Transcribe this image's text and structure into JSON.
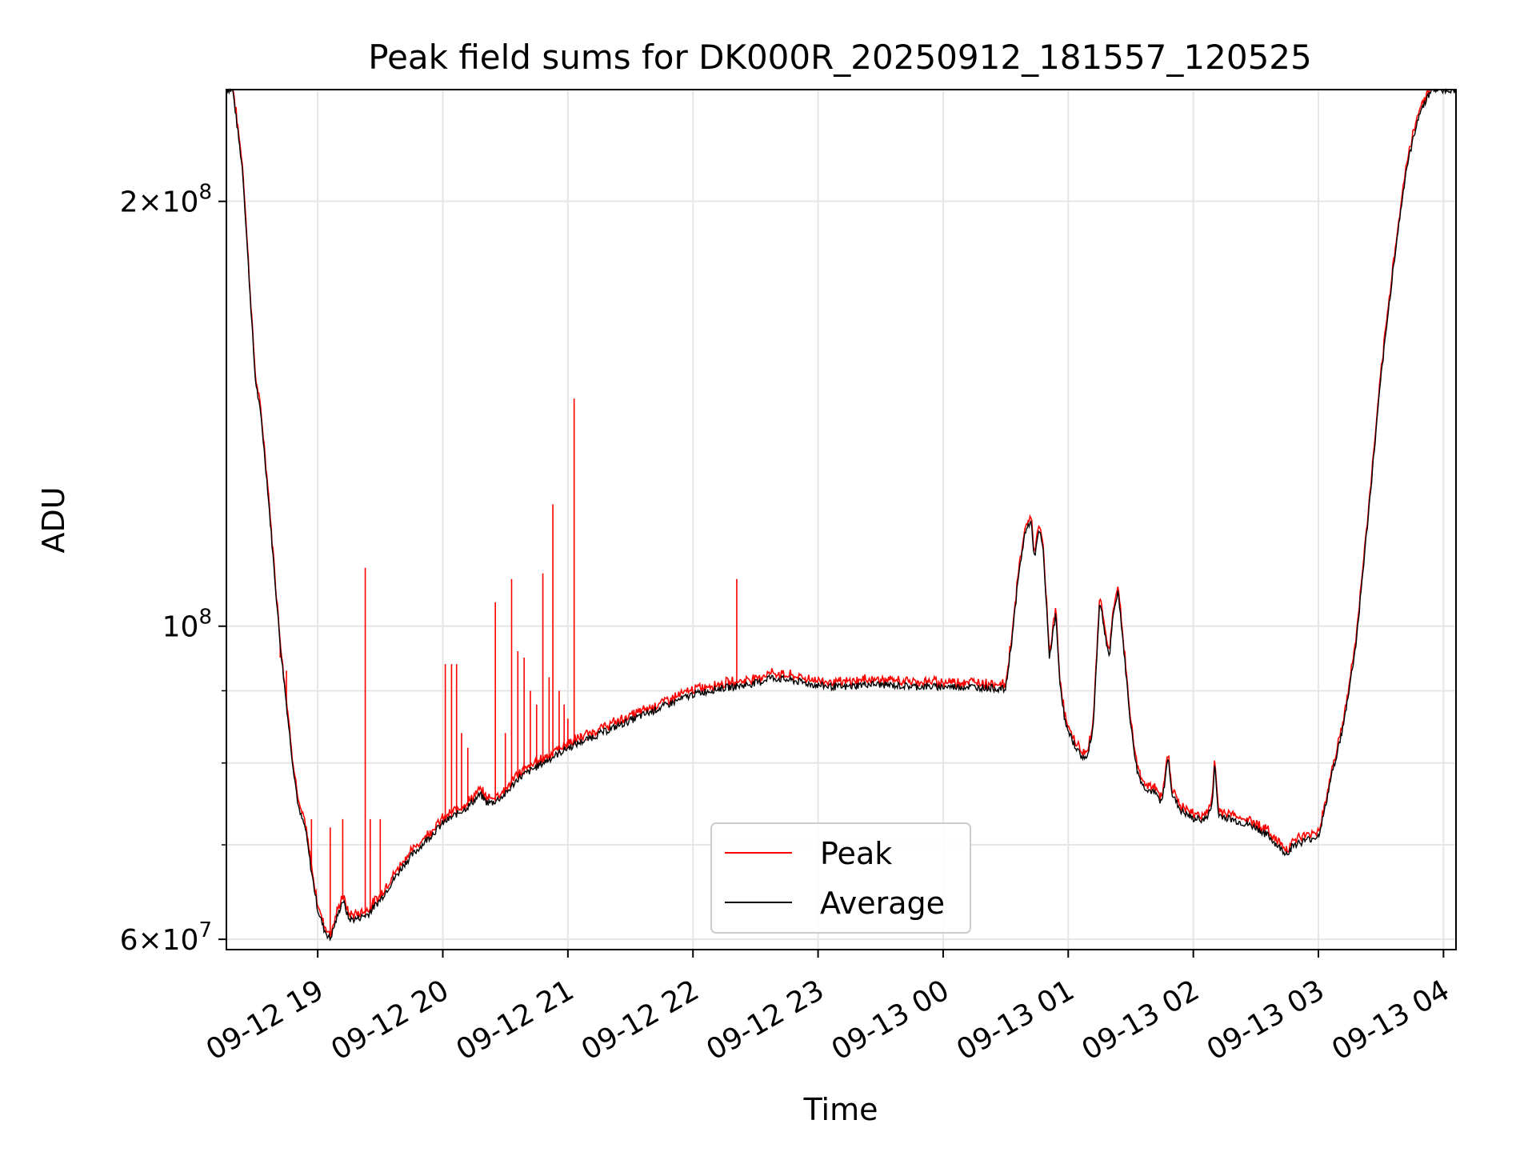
{
  "chart_data": {
    "type": "line",
    "title": "Peak field sums for DK000R_20250912_181557_120525",
    "xlabel": "Time",
    "ylabel": "ADU",
    "yscale": "log",
    "x_unit": "hours since 2025-09-12 18:00",
    "xlim": [
      18.27,
      28.1
    ],
    "ylim": [
      59000000,
      240000000
    ],
    "grid": true,
    "legend_position": "lower center",
    "x_ticks": [
      {
        "value": 19,
        "label": "09-12 19"
      },
      {
        "value": 20,
        "label": "09-12 20"
      },
      {
        "value": 21,
        "label": "09-12 21"
      },
      {
        "value": 22,
        "label": "09-12 22"
      },
      {
        "value": 23,
        "label": "09-12 23"
      },
      {
        "value": 24,
        "label": "09-13 00"
      },
      {
        "value": 25,
        "label": "09-13 01"
      },
      {
        "value": 26,
        "label": "09-13 02"
      },
      {
        "value": 27,
        "label": "09-13 03"
      },
      {
        "value": 28,
        "label": "09-13 04"
      }
    ],
    "y_ticks_major": [
      {
        "value": 60000000,
        "mantissa": "6",
        "exponent": "7"
      },
      {
        "value": 100000000,
        "mantissa": "",
        "exponent": "8"
      },
      {
        "value": 200000000,
        "mantissa": "2",
        "exponent": "8"
      }
    ],
    "y_ticks_minor": [
      70000000,
      80000000,
      90000000
    ],
    "series": [
      {
        "name": "Average",
        "color": "#000000",
        "x": [
          18.27,
          18.32,
          18.4,
          18.5,
          18.55,
          18.6,
          18.65,
          18.7,
          18.75,
          18.8,
          18.85,
          18.9,
          18.95,
          19.0,
          19.05,
          19.1,
          19.15,
          19.2,
          19.25,
          19.3,
          19.4,
          19.5,
          19.6,
          19.7,
          19.8,
          19.9,
          20.0,
          20.1,
          20.2,
          20.3,
          20.35,
          20.4,
          20.5,
          20.6,
          20.8,
          21.0,
          21.2,
          21.4,
          21.6,
          21.8,
          22.0,
          22.2,
          22.4,
          22.55,
          22.6,
          22.8,
          23.0,
          23.2,
          23.4,
          23.6,
          23.8,
          24.0,
          24.2,
          24.4,
          24.5,
          24.55,
          24.6,
          24.65,
          24.7,
          24.73,
          24.77,
          24.8,
          24.85,
          24.9,
          24.93,
          24.97,
          25.0,
          25.1,
          25.15,
          25.2,
          25.25,
          25.27,
          25.3,
          25.33,
          25.35,
          25.38,
          25.4,
          25.45,
          25.5,
          25.55,
          25.6,
          25.7,
          25.75,
          25.8,
          25.83,
          25.9,
          26.0,
          26.1,
          26.15,
          26.17,
          26.2,
          26.3,
          26.5,
          26.6,
          26.7,
          26.75,
          26.8,
          26.9,
          27.0,
          27.05,
          27.1,
          27.2,
          27.3,
          27.4,
          27.5,
          27.6,
          27.7,
          27.8,
          27.9,
          28.0,
          28.1
        ],
        "values": [
          240000000,
          240000000,
          210000000,
          150000000,
          140000000,
          125000000,
          110000000,
          97000000,
          88000000,
          80000000,
          74000000,
          72000000,
          67000000,
          63000000,
          61000000,
          60000000,
          62000000,
          64000000,
          62000000,
          62000000,
          62500000,
          64000000,
          66000000,
          68000000,
          69500000,
          71000000,
          72500000,
          73500000,
          74500000,
          76000000,
          75000000,
          75000000,
          76000000,
          78000000,
          80000000,
          82000000,
          83500000,
          85000000,
          86500000,
          88000000,
          89500000,
          90300000,
          90800000,
          91300000,
          92000000,
          91500000,
          90800000,
          90500000,
          91000000,
          90800000,
          90600000,
          90600000,
          90600000,
          90400000,
          90200000,
          98000000,
          108000000,
          116000000,
          119000000,
          112000000,
          117000000,
          113000000,
          95000000,
          102000000,
          92000000,
          86000000,
          84000000,
          81000000,
          80500000,
          85000000,
          104000000,
          102000000,
          98000000,
          95000000,
          100000000,
          104000000,
          106000000,
          95000000,
          85000000,
          79000000,
          77000000,
          76000000,
          75000000,
          81000000,
          76000000,
          74000000,
          73000000,
          73000000,
          74500000,
          80000000,
          73500000,
          73000000,
          72000000,
          71000000,
          69500000,
          69000000,
          70000000,
          70500000,
          71000000,
          74000000,
          78000000,
          85000000,
          97000000,
          120000000,
          150000000,
          180000000,
          210000000,
          230000000,
          240000000,
          240000000,
          240000000
        ]
      },
      {
        "name": "Peak",
        "color": "#ff0000",
        "offset_note": "Peak closely follows Average with upward spikes",
        "spikes": [
          {
            "x": 18.7,
            "value": 95000000
          },
          {
            "x": 18.75,
            "value": 93000000
          },
          {
            "x": 18.95,
            "value": 73000000
          },
          {
            "x": 19.1,
            "value": 72000000
          },
          {
            "x": 19.2,
            "value": 73000000
          },
          {
            "x": 19.38,
            "value": 110000000
          },
          {
            "x": 19.42,
            "value": 73000000
          },
          {
            "x": 19.5,
            "value": 73000000
          },
          {
            "x": 20.02,
            "value": 94000000
          },
          {
            "x": 20.07,
            "value": 94000000
          },
          {
            "x": 20.11,
            "value": 94000000
          },
          {
            "x": 20.15,
            "value": 84000000
          },
          {
            "x": 20.2,
            "value": 82000000
          },
          {
            "x": 20.42,
            "value": 104000000
          },
          {
            "x": 20.5,
            "value": 84000000
          },
          {
            "x": 20.55,
            "value": 108000000
          },
          {
            "x": 20.6,
            "value": 96000000
          },
          {
            "x": 20.65,
            "value": 95000000
          },
          {
            "x": 20.7,
            "value": 90000000
          },
          {
            "x": 20.75,
            "value": 88000000
          },
          {
            "x": 20.8,
            "value": 109000000
          },
          {
            "x": 20.85,
            "value": 92000000
          },
          {
            "x": 20.88,
            "value": 122000000
          },
          {
            "x": 20.93,
            "value": 90000000
          },
          {
            "x": 20.97,
            "value": 88000000
          },
          {
            "x": 21.0,
            "value": 86000000
          },
          {
            "x": 21.05,
            "value": 145000000
          },
          {
            "x": 21.1,
            "value": 84000000
          },
          {
            "x": 21.15,
            "value": 83000000
          },
          {
            "x": 21.2,
            "value": 84000000
          },
          {
            "x": 22.35,
            "value": 108000000
          }
        ]
      }
    ]
  },
  "tick_labels": {
    "x": [
      "09-12 19",
      "09-12 20",
      "09-12 21",
      "09-12 22",
      "09-12 23",
      "09-13 00",
      "09-13 01",
      "09-13 02",
      "09-13 03",
      "09-13 04"
    ]
  },
  "legend": {
    "entries": [
      {
        "label": "Peak",
        "color": "#ff0000"
      },
      {
        "label": "Average",
        "color": "#000000"
      }
    ]
  }
}
